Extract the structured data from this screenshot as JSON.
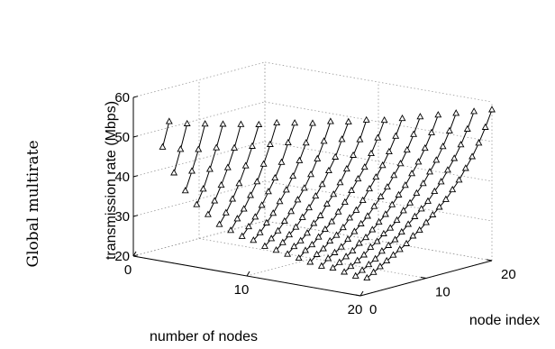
{
  "side_label": "Global multirate",
  "chart_data": {
    "type": "line3d",
    "title": "",
    "xlabel": "number of nodes",
    "ylabel": "node index",
    "zlabel": "transmission rate (Mbps)",
    "xlim": [
      0,
      20
    ],
    "ylim": [
      0,
      20
    ],
    "zlim": [
      20,
      60
    ],
    "xticks": [
      0,
      10,
      20
    ],
    "yticks": [
      0,
      10,
      20
    ],
    "zticks": [
      20,
      30,
      40,
      50,
      60
    ],
    "grid": true,
    "marker": "triangle",
    "series": [
      {
        "nodes": 2,
        "rates": [
          48,
          54
        ]
      },
      {
        "nodes": 3,
        "rates": [
          42,
          47.5,
          53.5
        ]
      },
      {
        "nodes": 4,
        "rates": [
          38,
          42.5,
          47.5,
          53.5
        ]
      },
      {
        "nodes": 5,
        "rates": [
          35,
          38.5,
          43,
          48,
          53.5
        ]
      },
      {
        "nodes": 6,
        "rates": [
          33,
          36,
          39.5,
          43.5,
          48,
          53.5
        ]
      },
      {
        "nodes": 7,
        "rates": [
          31,
          33.5,
          36.5,
          40,
          44,
          48.5,
          53.5
        ]
      },
      {
        "nodes": 8,
        "rates": [
          30,
          32.5,
          34.5,
          37.5,
          40.5,
          44.5,
          49,
          54
        ]
      },
      {
        "nodes": 9,
        "rates": [
          29,
          31,
          33,
          35.5,
          38.5,
          41.5,
          45,
          49.5,
          54
        ]
      },
      {
        "nodes": 10,
        "rates": [
          28.5,
          30,
          32,
          34,
          36.5,
          39,
          42,
          45.5,
          49.5,
          54
        ]
      },
      {
        "nodes": 11,
        "rates": [
          27.5,
          29,
          30.5,
          32.5,
          34.5,
          37,
          39.5,
          42.5,
          46,
          50,
          54.5
        ]
      },
      {
        "nodes": 12,
        "rates": [
          27,
          28.5,
          30,
          31.5,
          33.5,
          35.5,
          38,
          40.5,
          43.5,
          46.5,
          50.5,
          54.5
        ]
      },
      {
        "nodes": 13,
        "rates": [
          26.5,
          28,
          29,
          30.5,
          32.5,
          34,
          36.5,
          38.5,
          41,
          44,
          47,
          50.5,
          55
        ]
      },
      {
        "nodes": 14,
        "rates": [
          26,
          27.5,
          28.5,
          30,
          31.5,
          33,
          35,
          37,
          39.5,
          42,
          44.5,
          47.5,
          51,
          55
        ]
      },
      {
        "nodes": 15,
        "rates": [
          25.5,
          27,
          28,
          29.5,
          30.5,
          32,
          34,
          35.5,
          37.5,
          40,
          42.5,
          45,
          48,
          51.5,
          55.5
        ]
      },
      {
        "nodes": 16,
        "rates": [
          25,
          26.5,
          27.5,
          28.5,
          30,
          31.5,
          33,
          34.5,
          36.5,
          38.5,
          40.5,
          43,
          45.5,
          48.5,
          52,
          56
        ]
      },
      {
        "nodes": 17,
        "rates": [
          25,
          26,
          27,
          28,
          29.5,
          30.5,
          32,
          33.5,
          35,
          37,
          39,
          41,
          43.5,
          46,
          49,
          52.5,
          56.5
        ]
      },
      {
        "nodes": 18,
        "rates": [
          24.5,
          25.5,
          26.5,
          27.5,
          29,
          30,
          31.5,
          32.5,
          34,
          36,
          37.5,
          39.5,
          41.5,
          44,
          46.5,
          49.5,
          53,
          57
        ]
      },
      {
        "nodes": 19,
        "rates": [
          24,
          25,
          26,
          27,
          28.5,
          29.5,
          30.5,
          32,
          33.5,
          35,
          36.5,
          38,
          40,
          42,
          44.5,
          47,
          50,
          53.5,
          57.5
        ]
      },
      {
        "nodes": 20,
        "rates": [
          24,
          25,
          26,
          27,
          28,
          29,
          30,
          31.5,
          32.5,
          34,
          35.5,
          37,
          38.5,
          40.5,
          42.5,
          45,
          47.5,
          50.5,
          54,
          58
        ]
      }
    ]
  }
}
